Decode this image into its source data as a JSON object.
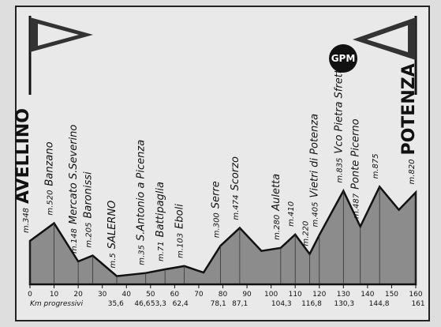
{
  "chart_data": {
    "type": "area",
    "x": [
      0,
      10,
      20,
      26,
      36,
      48,
      56,
      64,
      72,
      79,
      87,
      96,
      104,
      110,
      116,
      120,
      130,
      137,
      145,
      153,
      160
    ],
    "series": [
      {
        "color": "#8c8c8c",
        "values": [
          348,
          520,
          148,
          205,
          5,
          35,
          71,
          103,
          40,
          300,
          474,
          250,
          280,
          410,
          220,
          405,
          835,
          487,
          875,
          650,
          820
        ],
        "value_labels": [
          "m.348",
          "m.520",
          "m.148",
          "m.205",
          "m.5",
          "m.35",
          "m.71",
          "m.103",
          null,
          "m.300",
          "m.474",
          null,
          "m.280",
          "m.410",
          "m.220",
          "m.405",
          "m.835",
          "m.487",
          "m.875",
          null,
          "m.820"
        ],
        "point_names": [
          "AVELLINO",
          "Banzano",
          "Mercato S.Severino",
          "Baronissi",
          "SALERNO",
          "S.Antonio a Picenza",
          "Battipaglia",
          "Eboli",
          null,
          "Serre",
          "Scorzo",
          null,
          "Auletta",
          null,
          null,
          "Vietri di Potenza",
          "Vco Pietra Sfretta",
          "Ponte Picerno",
          null,
          null,
          "POTENZA"
        ]
      }
    ],
    "xlim": [
      0,
      160
    ],
    "xticks": [
      0,
      10,
      20,
      30,
      40,
      50,
      60,
      70,
      80,
      90,
      100,
      110,
      120,
      130,
      140,
      150,
      160
    ],
    "ylim": [
      -75,
      2000
    ],
    "xlabel": "Km progressivi",
    "km_marks": [
      {
        "value": 35.6,
        "label": "35,6"
      },
      {
        "value": 46.6,
        "label": "46,6"
      },
      {
        "value": 53.3,
        "label": "53,3"
      },
      {
        "value": 62.4,
        "label": "62,4"
      },
      {
        "value": 78.1,
        "label": "78,1"
      },
      {
        "value": 87.1,
        "label": "87,1"
      },
      {
        "value": 104.3,
        "label": "104,3"
      },
      {
        "value": 116.8,
        "label": "116,8"
      },
      {
        "value": 130.3,
        "label": "130,3"
      },
      {
        "value": 144.8,
        "label": "144,8"
      },
      {
        "value": 161,
        "label": "161"
      }
    ],
    "badge": "GPM"
  }
}
